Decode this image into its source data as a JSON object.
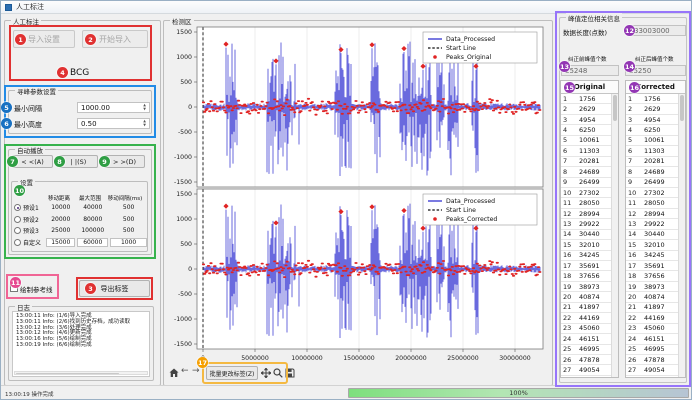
{
  "window_title": "人工标注",
  "left_panel": {
    "group_title": "人工标注",
    "import_settings_button": "导入设置",
    "start_import_button": "开始导入",
    "signal_type_label": "BCG",
    "peak_params": {
      "group_title": "寻峰参数设置",
      "min_interval_label": "最小间隔",
      "min_interval_value": "1000.00",
      "min_height_label": "最小高度",
      "min_height_value": "0.50"
    },
    "autoplay": {
      "group_title": "自动播放",
      "back_button": "< <(A)",
      "pause_button": "| |(S)",
      "forward_button": "> >(D)",
      "settings": {
        "group_title": "设置",
        "columns": [
          "移动距离",
          "最大范围",
          "移动间隔(ms)"
        ],
        "presets": [
          {
            "label": "预设1",
            "selected": true,
            "editable": false,
            "values": [
              "10000",
              "40000",
              "500"
            ]
          },
          {
            "label": "预设2",
            "selected": false,
            "editable": false,
            "values": [
              "20000",
              "80000",
              "500"
            ]
          },
          {
            "label": "预设3",
            "selected": false,
            "editable": false,
            "values": [
              "25000",
              "100000",
              "500"
            ]
          },
          {
            "label": "自定义",
            "selected": false,
            "editable": true,
            "values": [
              "15000",
              "60000",
              "1000"
            ]
          }
        ]
      }
    },
    "reference_checkbox_label": "绘制参考线",
    "export_labels_button": "导出标签",
    "log": {
      "group_title": "日志",
      "lines": [
        "13:00:11 Info: (1/6)导入完成",
        "13:00:11 Info: (2/6)找到历史存档，成功读取",
        "13:00:12 Info: (3/6)处理完成",
        "13:00:12 Info: (4/6)更新完成",
        "13:00:16 Info: (5/6)绘制完成",
        "13:00:19 Info: (6/6)绘制完成"
      ]
    }
  },
  "plot_panel": {
    "group_title": "检测区",
    "y_ticks": [
      "1500",
      "1000",
      "500",
      "0",
      "-500",
      "-1000",
      "-1500"
    ],
    "x_ticks": [
      "0",
      "5000000",
      "10000000",
      "15000000",
      "20000000",
      "25000000",
      "30000000"
    ],
    "subplots": [
      {
        "legend": [
          "Data_Processed",
          "Start Line",
          "Peaks_Original"
        ]
      },
      {
        "legend": [
          "Data_Processed",
          "Start Line",
          "Peaks_Corrected"
        ]
      }
    ],
    "toolbar": {
      "batch_edit_button": "批量更改标签(Z)"
    }
  },
  "right_panel": {
    "group_title": "峰值定位相关信息",
    "data_length_label": "数据长度(点数)",
    "data_length_value": "33003000",
    "before_label": "纠正前峰值个数",
    "before_value": "25248",
    "after_label": "纠正后峰值个数",
    "after_value": "25250",
    "tables": {
      "original_header": "Original",
      "corrected_header": "Corrected",
      "original_values": [
        1756,
        2629,
        4954,
        6250,
        10061,
        11303,
        20281,
        24689,
        26499,
        27302,
        28050,
        28994,
        29922,
        30440,
        32010,
        34245,
        35691,
        37656,
        38973,
        40874,
        41897,
        44169,
        45060,
        46151,
        46995,
        47878,
        49054
      ],
      "corrected_values": [
        1756,
        2629,
        4954,
        6250,
        10061,
        11303,
        20281,
        24689,
        26499,
        27302,
        28050,
        28994,
        29922,
        30440,
        32010,
        34245,
        35691,
        37656,
        38973,
        40874,
        41897,
        44169,
        45060,
        46151,
        46995,
        47878,
        49054
      ]
    }
  },
  "status_bar": {
    "message": "13:00:19 操作完成",
    "progress_text": "100%",
    "progress_percent": 100
  },
  "annotations": {
    "numbers": [
      "1",
      "2",
      "3",
      "4",
      "5",
      "6",
      "7",
      "8",
      "9",
      "10",
      "11",
      "12",
      "13",
      "14",
      "15",
      "16",
      "17"
    ]
  },
  "colors": {
    "annotation_red": "#e03131",
    "annotation_blue": "#1971c2",
    "annotation_green": "#2f9e44",
    "annotation_pink": "#e64990",
    "annotation_purple": "#9336b4",
    "annotation_orange": "#f59f00",
    "signal_blue": "#2121cd",
    "marker_red": "#e02424",
    "grid_gray": "#e0e0e0",
    "progress_green": "#7ddf7d"
  }
}
